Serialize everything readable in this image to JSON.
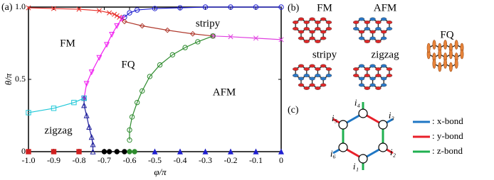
{
  "chart_data": {
    "type": "line",
    "xlabel": "φ/π",
    "ylabel": "θ/π",
    "panel_label": "(a)",
    "xlim": [
      -1,
      0
    ],
    "ylim": [
      0,
      1
    ],
    "xticks": [
      {
        "value": -1,
        "label": "-1.0"
      },
      -0.9,
      -0.8,
      -0.7,
      -0.6,
      -0.5,
      -0.4,
      -0.3,
      -0.2,
      -0.1,
      0
    ],
    "yticks": [
      0,
      0.5,
      {
        "value": 1,
        "label": "1.0"
      }
    ],
    "annotations": [
      "FM",
      "FQ",
      "stripy",
      "AFM",
      "zigzag"
    ],
    "series": [
      {
        "color": "#e8302a",
        "marker": "x",
        "x": [
          -1,
          -0.9,
          -0.8,
          -0.72,
          -0.68,
          -0.66,
          -0.65,
          -0.64,
          -0.63
        ],
        "values": [
          0.995,
          0.99,
          0.985,
          0.975,
          0.96,
          0.95,
          0.94,
          0.93,
          0.92
        ]
      },
      {
        "color": "#2020d0",
        "marker": "circle",
        "x": [
          -0.62,
          -0.6,
          -0.57,
          -0.5,
          -0.4,
          -0.3,
          -0.2,
          -0.1,
          0
        ],
        "values": [
          0.93,
          0.96,
          0.98,
          0.99,
          0.995,
          1,
          1,
          1,
          1
        ]
      },
      {
        "color": "#b03a2e",
        "marker": "diamond",
        "x": [
          -0.62,
          -0.55,
          -0.45,
          -0.35,
          -0.27
        ],
        "values": [
          0.9,
          0.87,
          0.84,
          0.815,
          0.8
        ]
      },
      {
        "color": "#e040e0",
        "marker": "x",
        "x": [
          -0.27,
          -0.2,
          -0.1,
          0
        ],
        "values": [
          0.8,
          0.795,
          0.785,
          0.775
        ]
      },
      {
        "color": "#f020f0",
        "marker": "triangle-down",
        "x": [
          -0.78,
          -0.77,
          -0.75,
          -0.72,
          -0.69,
          -0.67,
          -0.65,
          -0.63
        ],
        "values": [
          0.37,
          0.47,
          0.55,
          0.65,
          0.74,
          0.81,
          0.87,
          0.92
        ]
      },
      {
        "color": "#2e8b2e",
        "marker": "circle",
        "x": [
          -0.6,
          -0.6,
          -0.59,
          -0.57,
          -0.55,
          -0.52,
          -0.48,
          -0.43,
          -0.38,
          -0.33,
          -0.27
        ],
        "values": [
          0.08,
          0.15,
          0.24,
          0.34,
          0.42,
          0.52,
          0.6,
          0.67,
          0.72,
          0.76,
          0.8
        ]
      },
      {
        "color": "#1a1a9a",
        "marker": "triangle-up",
        "x": [
          -0.745,
          -0.745,
          -0.75,
          -0.76,
          -0.77,
          -0.78,
          -0.78
        ],
        "values": [
          0,
          0.05,
          0.1,
          0.17,
          0.25,
          0.32,
          0.37
        ]
      },
      {
        "color": "#20c8d8",
        "marker": "square",
        "x": [
          -1,
          -0.9,
          -0.82,
          -0.78
        ],
        "values": [
          0.27,
          0.3,
          0.34,
          0.37
        ]
      },
      {
        "color": "#d02020",
        "marker": "filled-square",
        "line": false,
        "x": [
          -1,
          -0.9,
          -0.8
        ],
        "values": [
          0,
          0,
          0
        ]
      },
      {
        "color": "#000000",
        "marker": "filled-circle",
        "line": false,
        "x": [
          -0.7,
          -0.68,
          -0.65,
          -0.62
        ],
        "values": [
          0,
          0,
          0,
          0
        ]
      },
      {
        "color": "#2e8b2e",
        "marker": "filled-circle",
        "line": false,
        "x": [
          -0.6,
          -0.58
        ],
        "values": [
          0,
          0
        ]
      },
      {
        "color": "#2020d0",
        "marker": "filled-triangle",
        "line": false,
        "x": [
          -0.5,
          -0.4,
          -0.3,
          -0.2,
          -0.1,
          0
        ],
        "values": [
          0,
          0,
          0,
          0,
          0,
          0
        ]
      }
    ]
  },
  "panel_b": {
    "label": "(b)",
    "phases": [
      "FM",
      "AFM",
      "FQ",
      "stripy",
      "zigzag"
    ]
  },
  "panel_c": {
    "label": "(c)",
    "sites": [
      "i₁",
      "i₂",
      "i₃",
      "i₄",
      "i₅",
      "i₆"
    ],
    "bonds": [
      ": x-bond",
      ": y-bond",
      ": z-bond"
    ]
  }
}
